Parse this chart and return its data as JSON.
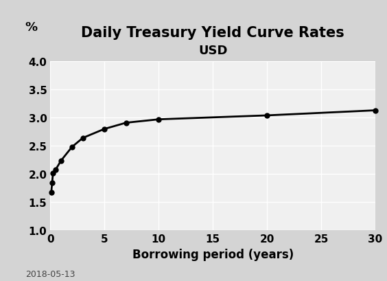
{
  "title_line1": "Daily Treasury Yield Curve Rates",
  "title_line2": "USD",
  "xlabel": "Borrowing period (years)",
  "ylabel_symbol": "%",
  "date_label": "2018-05-13",
  "x_values": [
    0.083,
    0.167,
    0.25,
    0.5,
    1,
    2,
    3,
    5,
    7,
    10,
    20,
    30
  ],
  "y_values": [
    1.67,
    1.84,
    2.02,
    2.08,
    2.24,
    2.48,
    2.64,
    2.8,
    2.91,
    2.97,
    3.04,
    3.13
  ],
  "xlim": [
    0,
    30
  ],
  "ylim": [
    1.0,
    4.0
  ],
  "xticks": [
    0,
    5,
    10,
    15,
    20,
    25,
    30
  ],
  "yticks": [
    1.0,
    1.5,
    2.0,
    2.5,
    3.0,
    3.5,
    4.0
  ],
  "line_color": "#000000",
  "marker": "o",
  "marker_size": 5,
  "line_width": 2,
  "background_color": "#d4d4d4",
  "plot_bg_color": "#f0f0f0",
  "grid_color": "#ffffff",
  "title_fontsize": 15,
  "subtitle_fontsize": 13,
  "axis_label_fontsize": 12,
  "tick_fontsize": 11,
  "ylabel_fontsize": 13,
  "date_fontsize": 9
}
